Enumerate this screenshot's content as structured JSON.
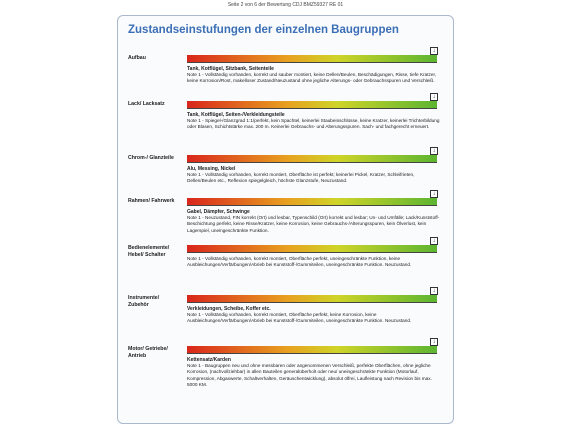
{
  "header": "Seite 2 von 6 der Bewertung CDJ BMZ59327 RE 01",
  "title": "Zustandseinstufungen der einzelnen Baugruppen",
  "sections": [
    {
      "label": "Aufbau",
      "parts": "Tank, Kotflügel, Sitzbank, Seitenteile",
      "note": "Note 1 - Vollständig vorhanden, korrekt und sauber montiert, keine Dellen/Beulen, Beschädigungen, Risse, tiefe Kratzer, keine Korrosion/Rost, makelloser Zustand/Neuzustand ohne jegliche Alterungs- oder Gebrauchsspuren und Verschleiß."
    },
    {
      "label": "Lack/ Lacksatz",
      "parts": "Tank, Kotflügel, Seiten-/Verkleidungsteile",
      "note": "Note 1 - Spiegel-/Glanzgrad 1:1/perfekt, kein Spachtel, keinerlei Staubeinschlüsse, keine Kratzer, keinerlei Trichterbildung oder Blasen, Schichtstärke max. 200 m. Keinerlei Gebrauchs- und Alterungsspuren. Sach- und fachgerecht erneuert."
    },
    {
      "label": "Chrom-/ Glanzteile",
      "parts": "Alu, Messing, Nickel",
      "note": "Note 1 - Vollständig vorhanden, korrekt montiert, Oberfläche ist perfekt; keinerlei Pickel, Kratzer, Schleifrieten, Dellen/Beulen etc., Reflexion spiegelgleich, höchste Glanzstufe, Neuzustand."
    },
    {
      "label": "Rahmen/ Fahrwerk",
      "parts": "Gabel, Dämpfer, Schwinge",
      "note": "Note 1 - Neuzustand, FIN korrekt (Ort) und lesbar, Typenschild (Ort) korrekt und lesbar; Un- und Umfälle; Lack/Kunststoff-Beschichtung perfekt, keine Risse/Kratzer, keine Korrosion, keine Gebrauchs-/Alterungsspuren, kein Ölverlust, kein Lagerspiel, uneingeschränkte Funktion."
    },
    {
      "label": "Bedienelemente/ Hebel/ Schalter",
      "note": "Note 1 - Vollständig vorhanden, korrekt montiert, Oberfläche perfekt, uneingeschränkte Funktion, keine Ausbleichungen/Verfärbungen/Abrieb bei Kunststoff-/Gummiteilen, uneingeschränkte Funktion. Neuzustand."
    },
    {
      "label": "Instrumente/ Zubehör",
      "parts": "Verkleidungen, Scheibe, Koffer etc.",
      "note": "Note 1 - Vollständig vorhanden, korrekt montiert, Oberfläche perfekt, keine Korrosion, keine Ausbleichungen/Verfärbungen/Abrieb bei Kunststoff-/Gummiteilen, uneingeschränkte Funktion. Neuzustand."
    },
    {
      "label": "Motor/ Getriebe/ Antrieb",
      "parts": "Kettensatz/Karden",
      "note": "Note 1 - Baugruppen neu und ohne messbaren oder angenommenen Verschleiß, perfekte Oberflächen, ohne jegliche Korrosion, (nachvollziehbar) in allen Bauteilen generalüberholt oder neu/ uneingeschränkte Funktion (Motorlauf, Kompression, Abgaswerte, Schaltverhalten, Geräuschentwicklung), absolut ölfrei, Laufleistung nach Revision bis max. 5000 KM."
    }
  ]
}
